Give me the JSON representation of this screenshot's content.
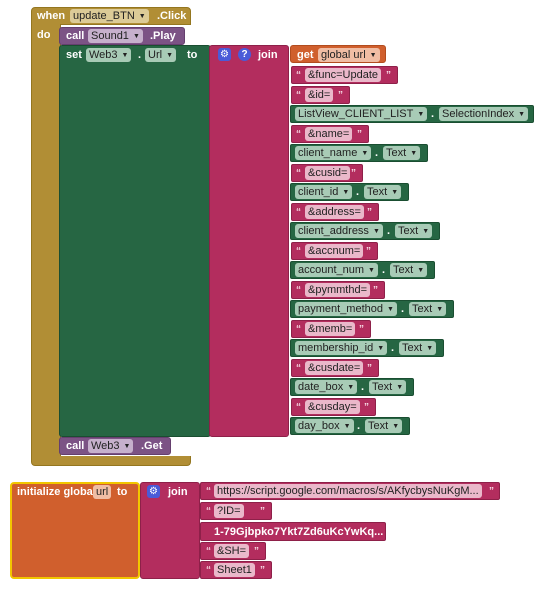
{
  "event_block": {
    "when": "when",
    "component": "update_BTN",
    "event": ".Click",
    "do": "do"
  },
  "call_play": {
    "call": "call",
    "component": "Sound1",
    "method": ".Play"
  },
  "set_url": {
    "set": "set",
    "component": "Web3",
    "property": "Url",
    "to": "to"
  },
  "join_label": "join",
  "get_global": {
    "get": "get",
    "var": "global url"
  },
  "join_items": [
    {
      "kind": "text",
      "value": "&func=Update"
    },
    {
      "kind": "text",
      "value": "&id="
    },
    {
      "kind": "prop",
      "component": "ListView_CLIENT_LIST",
      "property": "SelectionIndex"
    },
    {
      "kind": "text",
      "value": "&name="
    },
    {
      "kind": "prop",
      "component": "client_name",
      "property": "Text"
    },
    {
      "kind": "text",
      "value": "&cusid="
    },
    {
      "kind": "prop",
      "component": "client_id",
      "property": "Text"
    },
    {
      "kind": "text",
      "value": "&address="
    },
    {
      "kind": "prop",
      "component": "client_address",
      "property": "Text"
    },
    {
      "kind": "text",
      "value": "&accnum="
    },
    {
      "kind": "prop",
      "component": "account_num",
      "property": "Text"
    },
    {
      "kind": "text",
      "value": "&pymmthd="
    },
    {
      "kind": "prop",
      "component": "payment_method",
      "property": "Text"
    },
    {
      "kind": "text",
      "value": "&memb="
    },
    {
      "kind": "prop",
      "component": "membership_id",
      "property": "Text"
    },
    {
      "kind": "text",
      "value": "&cusdate="
    },
    {
      "kind": "prop",
      "component": "date_box",
      "property": "Text"
    },
    {
      "kind": "text",
      "value": "&cusday="
    },
    {
      "kind": "prop",
      "component": "day_box",
      "property": "Text"
    }
  ],
  "call_get": {
    "call": "call",
    "component": "Web3",
    "method": ".Get"
  },
  "init_global": {
    "label": "initialize global",
    "name": "url",
    "to": "to",
    "join": "join"
  },
  "init_items": [
    "https://script.google.com/macros/s/AKfycbysNuKgM...",
    "?ID=",
    "1-79Gjbpko7Ykt7Zd6uKcYwKq...",
    "&SH=",
    "Sheet1"
  ],
  "colors": {
    "event": "#b18e35",
    "procedure": "#7c5385",
    "component": "#266643",
    "text": "#b32d5e",
    "variable": "#d05f2d",
    "mutator": "#4a5bd8"
  }
}
